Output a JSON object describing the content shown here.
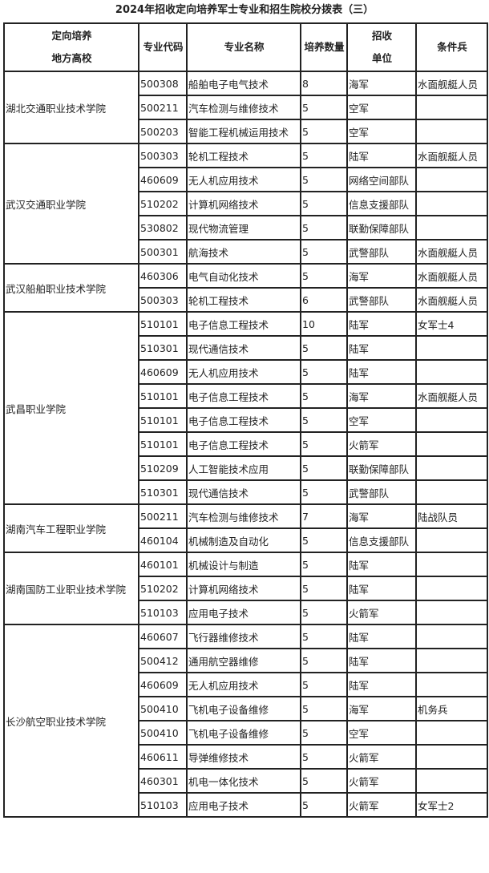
{
  "title": "2024年招收定向培养军士专业和招生院校分拨表（三）",
  "headers": {
    "school_line1": "定向培养",
    "school_line2": "地方高校",
    "code": "专业代码",
    "name": "专业名称",
    "count": "培养数量",
    "unit_line1": "招收",
    "unit_line2": "单位",
    "condition": "条件兵"
  },
  "groups": [
    {
      "school": "湖北交通职业技术学院",
      "rows": [
        [
          "500308",
          "船舶电子电气技术",
          "8",
          "海军",
          "水面舰艇人员"
        ],
        [
          "500211",
          "汽车检测与维修技术",
          "5",
          "空军",
          ""
        ],
        [
          "500203",
          "智能工程机械运用技术",
          "5",
          "空军",
          ""
        ]
      ]
    },
    {
      "school": "武汉交通职业学院",
      "rows": [
        [
          "500303",
          "轮机工程技术",
          "5",
          "陆军",
          "水面舰艇人员"
        ],
        [
          "460609",
          "无人机应用技术",
          "5",
          "网络空间部队",
          ""
        ],
        [
          "510202",
          "计算机网络技术",
          "5",
          "信息支援部队",
          ""
        ],
        [
          "530802",
          "现代物流管理",
          "5",
          "联勤保障部队",
          ""
        ],
        [
          "500301",
          "航海技术",
          "5",
          "武警部队",
          "水面舰艇人员"
        ]
      ]
    },
    {
      "school": "武汉船舶职业技术学院",
      "rows": [
        [
          "460306",
          "电气自动化技术",
          "5",
          "海军",
          "水面舰艇人员"
        ],
        [
          "500303",
          "轮机工程技术",
          "6",
          "武警部队",
          "水面舰艇人员"
        ]
      ]
    },
    {
      "school": "武昌职业学院",
      "rows": [
        [
          "510101",
          "电子信息工程技术",
          "10",
          "陆军",
          "女军士4"
        ],
        [
          "510301",
          "现代通信技术",
          "5",
          "陆军",
          ""
        ],
        [
          "460609",
          "无人机应用技术",
          "5",
          "陆军",
          ""
        ],
        [
          "510101",
          "电子信息工程技术",
          "5",
          "海军",
          "水面舰艇人员"
        ],
        [
          "510101",
          "电子信息工程技术",
          "5",
          "空军",
          ""
        ],
        [
          "510101",
          "电子信息工程技术",
          "5",
          "火箭军",
          ""
        ],
        [
          "510209",
          "人工智能技术应用",
          "5",
          "联勤保障部队",
          ""
        ],
        [
          "510301",
          "现代通信技术",
          "5",
          "武警部队",
          ""
        ]
      ]
    },
    {
      "school": "湖南汽车工程职业学院",
      "rows": [
        [
          "500211",
          "汽车检测与维修技术",
          "7",
          "海军",
          "陆战队员"
        ],
        [
          "460104",
          "机械制造及自动化",
          "5",
          "信息支援部队",
          ""
        ]
      ]
    },
    {
      "school": "湖南国防工业职业技术学院",
      "rows": [
        [
          "460101",
          "机械设计与制造",
          "5",
          "陆军",
          ""
        ],
        [
          "510202",
          "计算机网络技术",
          "5",
          "陆军",
          ""
        ],
        [
          "510103",
          "应用电子技术",
          "5",
          "火箭军",
          ""
        ]
      ]
    },
    {
      "school": "长沙航空职业技术学院",
      "rows": [
        [
          "460607",
          "飞行器维修技术",
          "5",
          "陆军",
          ""
        ],
        [
          "500412",
          "通用航空器维修",
          "5",
          "陆军",
          ""
        ],
        [
          "460609",
          "无人机应用技术",
          "5",
          "陆军",
          ""
        ],
        [
          "500410",
          "飞机电子设备维修",
          "5",
          "海军",
          "机务兵"
        ],
        [
          "500410",
          "飞机电子设备维修",
          "5",
          "空军",
          ""
        ],
        [
          "460611",
          "导弹维修技术",
          "5",
          "火箭军",
          ""
        ],
        [
          "460301",
          "机电一体化技术",
          "5",
          "火箭军",
          ""
        ],
        [
          "510103",
          "应用电子技术",
          "5",
          "火箭军",
          "女军士2"
        ]
      ]
    }
  ]
}
